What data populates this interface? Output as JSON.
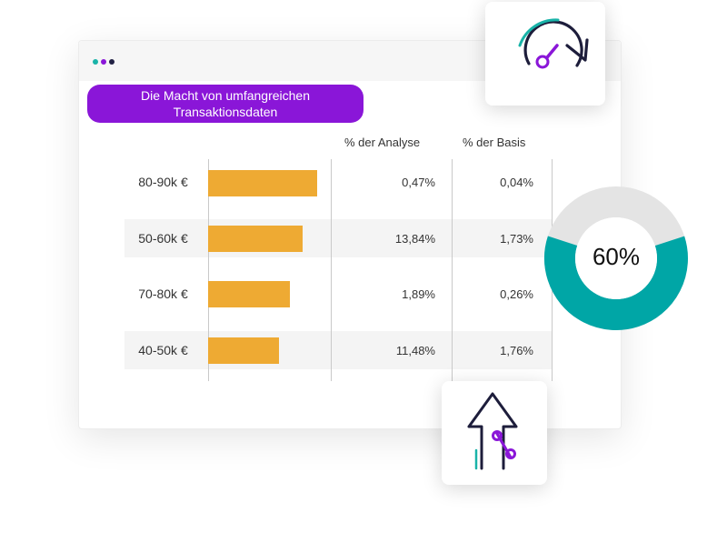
{
  "header": {
    "title": "Die Macht von umfangreichen Transaktionsdaten"
  },
  "columns": {
    "analyse": "% der Analyse",
    "basis": "% der Basis"
  },
  "rows": [
    {
      "label": "80-90k €",
      "analyse": "0,47%",
      "basis": "0,04%",
      "bar_fraction": 1.0
    },
    {
      "label": "50-60k €",
      "analyse": "13,84%",
      "basis": "1,73%",
      "bar_fraction": 0.87
    },
    {
      "label": "70-80k €",
      "analyse": "1,89%",
      "basis": "0,26%",
      "bar_fraction": 0.75
    },
    {
      "label": "40-50k €",
      "analyse": "11,48%",
      "basis": "1,76%",
      "bar_fraction": 0.65
    }
  ],
  "donut": {
    "label": "60%",
    "value": 0.6
  },
  "icons": {
    "top_card": "speedometer-icon",
    "bottom_card": "arrow-up-percent-icon"
  },
  "colors": {
    "accent_purple": "#8a16d8",
    "bar": "#eeaa33",
    "teal": "#00a6a6",
    "donut_track": "#e4e4e4",
    "dot1": "#19b3a8",
    "dot2": "#8a16d8",
    "dot3": "#222244"
  }
}
